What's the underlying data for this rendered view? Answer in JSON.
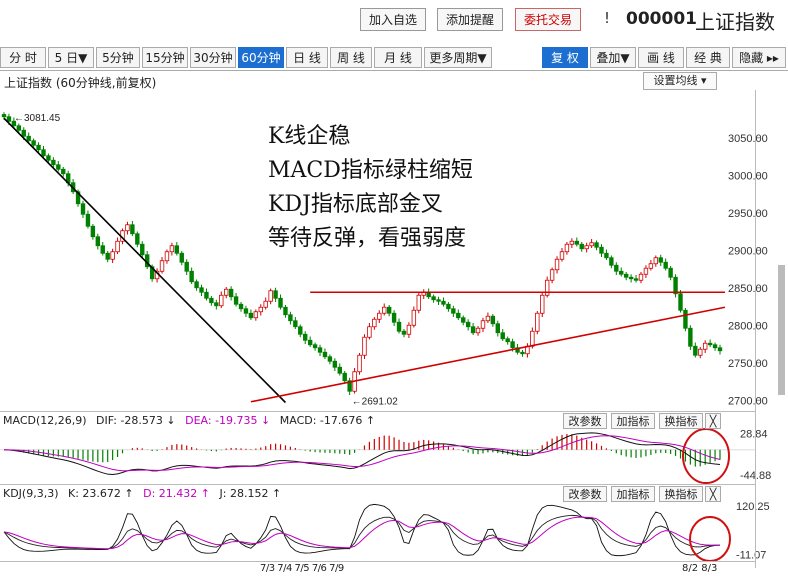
{
  "toolbar": {
    "add_watchlist": "加入自选",
    "add_alert": "添加提醒",
    "trade": "委托交易",
    "warn_icon": "!",
    "code": "000001",
    "name": "上证指数"
  },
  "tabs": [
    "分 时",
    "5 日▼",
    "5分钟",
    "15分钟",
    "30分钟",
    "60分钟",
    "日 线",
    "周 线",
    "月 线",
    "更多周期▼"
  ],
  "active_tab": "60分钟",
  "right_tabs": [
    "复 权",
    "叠加▼",
    "画 线",
    "经 典",
    "隐藏 ▸▸"
  ],
  "chart_title": "上证指数 (60分钟线,前复权)",
  "ma_button": "设置均线 ▾",
  "annotation_lines": [
    "K线企稳",
    "MACD指标绿柱缩短",
    "KDJ指标底部金叉",
    "等待反弹，看强弱度"
  ],
  "macd_legend": {
    "name": "MACD(12,26,9)",
    "dif": "DIF: -28.573 ↓",
    "dea": "DEA: -19.735 ↓",
    "macd": "MACD: -17.676 ↑"
  },
  "kdj_legend": {
    "name": "KDJ(9,3,3)",
    "k": "K: 23.672 ↑",
    "d": "D: 21.432 ↑",
    "j": "J: 28.152 ↑"
  },
  "panel_buttons": [
    "改参数",
    "加指标",
    "换指标",
    "╳"
  ],
  "x_dates": "7/3 7/4 7/5 7/6 7/9",
  "x_dates_right": "8/2 8/3",
  "chart_data": [
    {
      "type": "candlestick",
      "title": "上证指数 (60分钟线,前复权)",
      "yticks": [
        "3050.00",
        "3000.00",
        "2950.00",
        "2900.00",
        "2850.00",
        "2800.00",
        "2750.00",
        "2700.00"
      ],
      "ylim": [
        2695,
        3095
      ],
      "high_label": "3081.45",
      "low_label": "2691.02",
      "close": [
        3078,
        3072,
        3066,
        3060,
        3052,
        3046,
        3040,
        3034,
        3026,
        3020,
        3014,
        3008,
        3002,
        2990,
        2978,
        2962,
        2948,
        2932,
        2918,
        2906,
        2896,
        2888,
        2898,
        2912,
        2926,
        2934,
        2922,
        2908,
        2894,
        2878,
        2862,
        2872,
        2886,
        2898,
        2906,
        2896,
        2884,
        2872,
        2858,
        2850,
        2844,
        2836,
        2830,
        2826,
        2840,
        2848,
        2838,
        2828,
        2822,
        2816,
        2810,
        2818,
        2824,
        2832,
        2846,
        2836,
        2824,
        2814,
        2806,
        2798,
        2788,
        2780,
        2774,
        2770,
        2764,
        2758,
        2752,
        2744,
        2736,
        2726,
        2712,
        2738,
        2760,
        2784,
        2798,
        2808,
        2816,
        2824,
        2816,
        2804,
        2792,
        2788,
        2800,
        2820,
        2840,
        2844,
        2838,
        2834,
        2832,
        2828,
        2822,
        2816,
        2810,
        2804,
        2798,
        2790,
        2796,
        2806,
        2812,
        2802,
        2790,
        2782,
        2778,
        2770,
        2764,
        2762,
        2772,
        2792,
        2816,
        2840,
        2860,
        2874,
        2888,
        2898,
        2908,
        2912,
        2908,
        2902,
        2906,
        2910,
        2904,
        2896,
        2890,
        2880,
        2872,
        2868,
        2864,
        2862,
        2860,
        2868,
        2876,
        2882,
        2890,
        2884,
        2876,
        2864,
        2842,
        2820,
        2796,
        2772,
        2760,
        2768,
        2776,
        2774,
        2770,
        2766
      ],
      "lines": [
        {
          "name": "",
          "from": [
            0,
            3076
          ],
          "to": [
            57,
            2697
          ],
          "color": "#000000"
        },
        {
          "name": "",
          "from": [
            50,
            2698
          ],
          "to": [
            146,
            2824
          ],
          "color": "#d00000"
        },
        {
          "name": "",
          "from": [
            62,
            2844
          ],
          "to": [
            146,
            2844
          ],
          "color": "#d00000"
        }
      ]
    },
    {
      "type": "bar",
      "title": "MACD(12,26,9)",
      "yticks": [
        "28.84",
        "-44.88"
      ],
      "ylim": [
        -50,
        35
      ]
    },
    {
      "type": "line",
      "title": "KDJ(9,3,3)",
      "yticks": [
        "120.25",
        "-11.07"
      ],
      "ylim": [
        -15,
        125
      ]
    }
  ],
  "colors": {
    "up": "#d00000",
    "down": "#008000",
    "dif": "#111111",
    "dea": "#c000c0",
    "circle": "#d01010"
  }
}
